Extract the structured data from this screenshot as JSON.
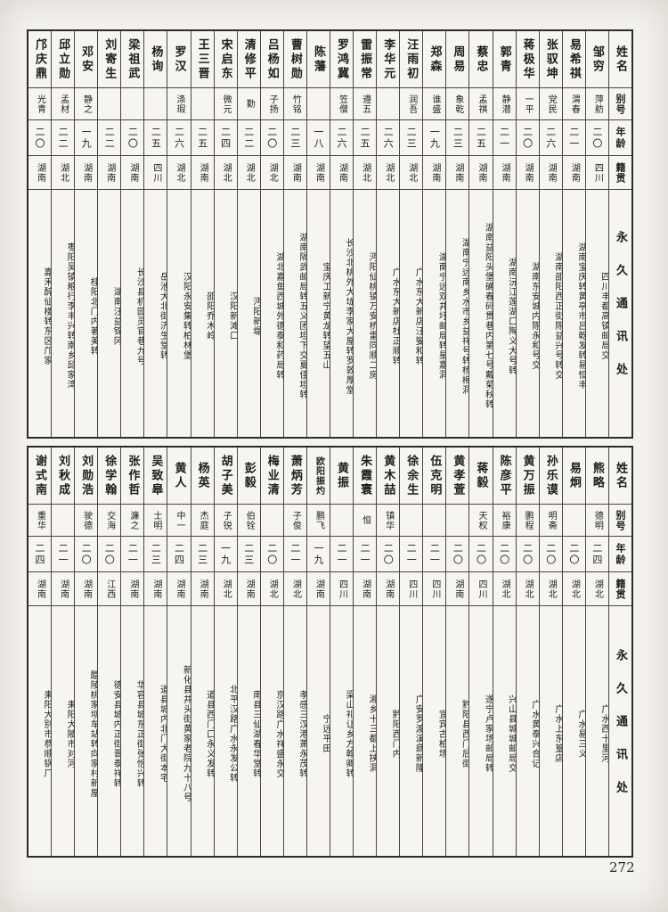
{
  "page": {
    "number": "272"
  },
  "tables": [
    {
      "header": {
        "name": "姓名",
        "alias": "别号",
        "age": "年龄",
        "origin": "籍贯",
        "address": "永久通讯处"
      },
      "entries": [
        {
          "name": "邹穷",
          "alias": "萍舫",
          "age": "二〇",
          "origin": "四川",
          "address": "四川丰都高镇邮局交"
        },
        {
          "name": "易希祺",
          "alias": "渭春",
          "age": "二一",
          "origin": "湖南",
          "address": "湖南宝庆转黄亭市吕乾发转易恒丰"
        },
        {
          "name": "张驭坤",
          "alias": "党民",
          "age": "二六",
          "origin": "湖南",
          "address": "湖南邵阳西正街陈益兴号转交"
        },
        {
          "name": "蒋极华",
          "alias": "一平",
          "age": "二〇",
          "origin": "湖南",
          "address": "湖南东安城内陈永和号交"
        },
        {
          "name": "郭青",
          "alias": "静潜",
          "age": "二一",
          "origin": "湖南",
          "address": "湖南沅江莲湖口陶义大号转"
        },
        {
          "name": "蔡忠",
          "alias": "孟祺",
          "age": "二五",
          "origin": "湖南",
          "address": "湖南益阳头堡确春码贯巷内第七号戴菊秋转"
        },
        {
          "name": "周易",
          "alias": "象乾",
          "age": "二三",
          "origin": "湖南",
          "address": "湖南宁远南乡水市乡益祥号转杨梅洞"
        },
        {
          "name": "郑森",
          "alias": "谁盛",
          "age": "一九",
          "origin": "湖南",
          "address": "湖南宁远双井圩邮局转星嘉洞"
        },
        {
          "name": "汪雨初",
          "alias": "润吾",
          "age": "二三",
          "origin": "湖北",
          "address": "广水东大新店汪燮和转"
        },
        {
          "name": "李华元",
          "alias": "",
          "age": "二六",
          "origin": "湖北",
          "address": "广水东大新店杜正顺转"
        },
        {
          "name": "雷振常",
          "alias": "遵五",
          "age": "二五",
          "origin": "湖北",
          "address": "沔阳仙桃镇万安桥雷同顺二房"
        },
        {
          "name": "罗鸿冀",
          "alias": "笠僧",
          "age": "二六",
          "origin": "湖南",
          "address": "长沙北桃外大垅李家大屋转罗敦厚堂"
        },
        {
          "name": "陈藩",
          "alias": "",
          "age": "一八",
          "origin": "湖南",
          "address": "宝庆工新宁黄龙转望五山"
        },
        {
          "name": "曹树勋",
          "alias": "竹铭",
          "age": "二三",
          "origin": "湖南",
          "address": "湖南隔武邮局转五义团坦下交夏佳坦转"
        },
        {
          "name": "吕杨如",
          "alias": "子扬",
          "age": "二〇",
          "origin": "湖北",
          "address": "湖北嘉鱼西城外德泰和药局转"
        },
        {
          "name": "清修平",
          "alias": "勤",
          "age": "二二",
          "origin": "湖北",
          "address": "沔阳新堤"
        },
        {
          "name": "宋启东",
          "alias": "微元",
          "age": "二四",
          "origin": "湖北",
          "address": "汉阳新滩口"
        },
        {
          "name": "王三晋",
          "alias": "",
          "age": "二五",
          "origin": "湖南",
          "address": "邵阳乔木岭"
        },
        {
          "name": "罗汉",
          "alias": "涤瑕",
          "age": "二六",
          "origin": "湖北",
          "address": "汉阳永安集转柏林堡"
        },
        {
          "name": "杨询",
          "alias": "",
          "age": "二五",
          "origin": "四川",
          "address": "岳池大北街济生堂转"
        },
        {
          "name": "梁祖武",
          "alias": "",
          "age": "二〇",
          "origin": "湖南",
          "address": "长沙县机园灵官巷九号"
        },
        {
          "name": "刘寄生",
          "alias": "",
          "age": "二二",
          "origin": "湖南",
          "address": "湖南汪益锦冈"
        },
        {
          "name": "邓安",
          "alias": "静之",
          "age": "一九",
          "origin": "湖南",
          "address": "桂阳北门内著美转"
        },
        {
          "name": "邱立勋",
          "alias": "孟材",
          "age": "二二",
          "origin": "湖北",
          "address": "枣阳吴镇粮行李丰兴转南乡邱家湾"
        },
        {
          "name": "邝庆鼎",
          "alias": "光青",
          "age": "二〇",
          "origin": "湖南",
          "address": "嘉禾醉仙楼转东区邝家"
        }
      ]
    },
    {
      "header": {
        "name": "姓名",
        "alias": "别号",
        "age": "年龄",
        "origin": "籍贯",
        "address": "永久通讯处"
      },
      "entries": [
        {
          "name": "熊略",
          "alias": "德明",
          "age": "二四",
          "origin": "湖北",
          "address": "广水西十里河"
        },
        {
          "name": "易炯",
          "alias": "",
          "age": "二〇",
          "origin": "湖北",
          "address": "广水易三义"
        },
        {
          "name": "孙乐谟",
          "alias": "明斋",
          "age": "二〇",
          "origin": "湖北",
          "address": "广水上东篁店"
        },
        {
          "name": "黄万振",
          "alias": "鹏程",
          "age": "二〇",
          "origin": "湖北",
          "address": "广水黄泰兴合记"
        },
        {
          "name": "陈彦平",
          "alias": "裕康",
          "age": "二〇",
          "origin": "湖北",
          "address": "兴山县城城邮局交"
        },
        {
          "name": "蒋毅",
          "alias": "天权",
          "age": "二〇",
          "origin": "四川",
          "address": "遂宁卢家场邮局转"
        },
        {
          "name": "黄孝萱",
          "alias": "",
          "age": "二〇",
          "origin": "湖南",
          "address": "黔阳县西门后街"
        },
        {
          "name": "伍克明",
          "alias": "",
          "age": "二一",
          "origin": "四川",
          "address": "宜宾古柏场"
        },
        {
          "name": "徐余生",
          "alias": "",
          "age": "二一",
          "origin": "四川",
          "address": "广安罗渡溪鼎新隆"
        },
        {
          "name": "黄木喆",
          "alias": "镇华",
          "age": "二〇",
          "origin": "湖南",
          "address": "黔阳西门内"
        },
        {
          "name": "朱霞寰",
          "alias": "恒",
          "age": "二一",
          "origin": "湖南",
          "address": "湘乡十三都上挟洞"
        },
        {
          "name": "黄振",
          "alias": "",
          "age": "二一",
          "origin": "四川",
          "address": "梁山礼让乡方翰卿转"
        },
        {
          "name": "欧阳振灼",
          "alias": "鹏飞",
          "age": "一九",
          "origin": "湖南",
          "address": "宁远平田"
        },
        {
          "name": "萧炳芳",
          "alias": "子俊",
          "age": "二一",
          "origin": "湖北",
          "address": "孝感三汊港萧永茂转"
        },
        {
          "name": "梅业清",
          "alias": "",
          "age": "二〇",
          "origin": "湖北",
          "address": "京汉路广水祥盛永交"
        },
        {
          "name": "彭毅",
          "alias": "伯铨",
          "age": "二三",
          "origin": "湖南",
          "address": "南县三仙湖春华堂转"
        },
        {
          "name": "胡子美",
          "alias": "子锐",
          "age": "一九",
          "origin": "湖北",
          "address": "北平汉路广水永发公转"
        },
        {
          "name": "杨英",
          "alias": "杰庭",
          "age": "二三",
          "origin": "湖南",
          "address": "道县西门口永义发转"
        },
        {
          "name": "黄人",
          "alias": "中一",
          "age": "二四",
          "origin": "湖南",
          "address": "新化县井头街黄家老院九十八号"
        },
        {
          "name": "吴致皋",
          "alias": "士明",
          "age": "二三",
          "origin": "湖南",
          "address": "道县城内北门大街本宅"
        },
        {
          "name": "张作哲",
          "alias": "濂之",
          "age": "二一",
          "origin": "湖南",
          "address": "华容县城东正街张怡兴转"
        },
        {
          "name": "徐学翰",
          "alias": "交海",
          "age": "二〇",
          "origin": "江西",
          "address": "德安县城内正街晋泰祥转"
        },
        {
          "name": "刘勋浩",
          "alias": "驶德",
          "age": "二〇",
          "origin": "湖南",
          "address": "醴陵桃家坝车站转向家村新屋"
        },
        {
          "name": "刘秋成",
          "alias": "",
          "age": "二一",
          "origin": "湖南",
          "address": "耒阳大陂市对河"
        },
        {
          "name": "谢式南",
          "alias": "重华",
          "age": "二四",
          "origin": "湖南",
          "address": "耒阳大别市恭顺锅厂"
        }
      ]
    }
  ]
}
